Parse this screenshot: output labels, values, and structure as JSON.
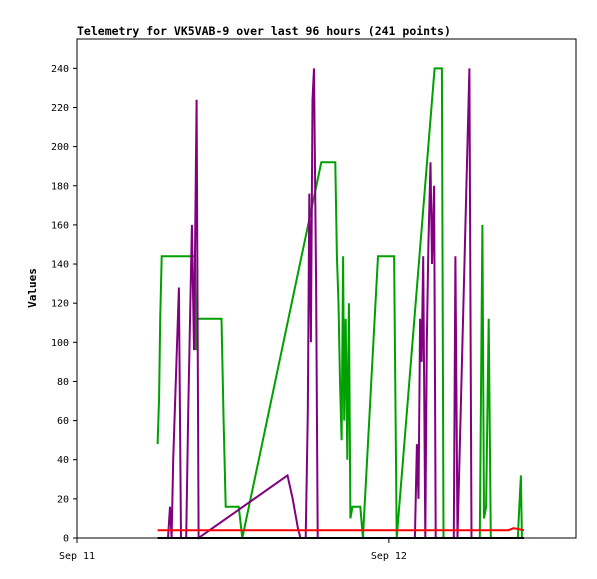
{
  "chart_data": {
    "type": "line",
    "title": "Telemetry for VK5VAB-9 over last 96 hours (241 points)",
    "xlabel": "",
    "ylabel": "Values",
    "x_range_hours": [
      0,
      96
    ],
    "ylim": [
      0,
      255
    ],
    "y_ticks": [
      0,
      20,
      40,
      60,
      80,
      100,
      120,
      140,
      160,
      180,
      200,
      220,
      240
    ],
    "x_ticks": [
      {
        "label": "Sep 11",
        "hour": 0
      },
      {
        "label": "Sep 12",
        "hour": 60
      }
    ],
    "grid": false,
    "legend": "none",
    "series": [
      {
        "color": "#00a000",
        "points": [
          [
            15.5,
            48
          ],
          [
            15.8,
            72
          ],
          [
            16,
            112
          ],
          [
            16.3,
            144
          ],
          [
            22.7,
            144
          ],
          [
            22.9,
            96
          ],
          [
            23.2,
            112
          ],
          [
            27.8,
            112
          ],
          [
            28.2,
            60
          ],
          [
            28.6,
            16
          ],
          [
            31.1,
            16
          ],
          [
            31.8,
            0
          ],
          [
            47,
            192
          ],
          [
            49.7,
            192
          ],
          [
            50,
            144
          ],
          [
            50.3,
            120
          ],
          [
            50.6,
            80
          ],
          [
            50.9,
            50
          ],
          [
            51.2,
            144
          ],
          [
            51.4,
            60
          ],
          [
            51.7,
            112
          ],
          [
            52,
            40
          ],
          [
            52.3,
            120
          ],
          [
            52.6,
            10
          ],
          [
            53,
            16
          ],
          [
            54.5,
            16
          ],
          [
            55,
            0
          ],
          [
            57.9,
            144
          ],
          [
            61,
            144
          ],
          [
            61.5,
            0
          ],
          [
            68.8,
            240
          ],
          [
            70.2,
            240
          ],
          [
            70.5,
            0
          ],
          [
            77.5,
            0
          ],
          [
            78,
            160
          ],
          [
            78.3,
            10
          ],
          [
            78.7,
            16
          ],
          [
            79.2,
            112
          ],
          [
            79.6,
            0
          ],
          [
            84.8,
            0
          ],
          [
            85.1,
            16
          ],
          [
            85.4,
            32
          ],
          [
            85.6,
            0
          ]
        ]
      },
      {
        "color": "#800080",
        "points": [
          [
            17.5,
            0
          ],
          [
            17.9,
            16
          ],
          [
            18.2,
            0
          ],
          [
            18.5,
            40
          ],
          [
            19,
            80
          ],
          [
            19.6,
            128
          ],
          [
            20,
            0
          ],
          [
            21,
            0
          ],
          [
            21.4,
            64
          ],
          [
            22.1,
            160
          ],
          [
            22.5,
            96
          ],
          [
            23,
            224
          ],
          [
            23.4,
            0
          ],
          [
            40.5,
            32
          ],
          [
            41.5,
            20
          ],
          [
            42.5,
            5
          ],
          [
            43,
            0
          ],
          [
            44,
            0
          ],
          [
            44.4,
            64
          ],
          [
            44.7,
            176
          ],
          [
            45,
            100
          ],
          [
            45.3,
            224
          ],
          [
            45.6,
            240
          ],
          [
            46,
            130
          ],
          [
            46.3,
            0
          ],
          [
            65,
            0
          ],
          [
            65.4,
            48
          ],
          [
            65.7,
            20
          ],
          [
            66,
            112
          ],
          [
            66.3,
            90
          ],
          [
            66.6,
            144
          ],
          [
            67,
            0
          ],
          [
            67.3,
            100
          ],
          [
            67.6,
            150
          ],
          [
            68,
            192
          ],
          [
            68.3,
            140
          ],
          [
            68.7,
            180
          ],
          [
            69,
            0
          ],
          [
            72.5,
            0
          ],
          [
            72.8,
            144
          ],
          [
            73.2,
            0
          ],
          [
            75.5,
            240
          ],
          [
            75.9,
            0
          ]
        ]
      },
      {
        "color": "#ff0000",
        "points": [
          [
            15.5,
            4
          ],
          [
            83,
            4
          ],
          [
            84,
            5
          ],
          [
            86,
            4
          ]
        ]
      },
      {
        "color": "#000000",
        "points": [
          [
            15.5,
            0
          ],
          [
            86,
            0
          ]
        ]
      }
    ]
  }
}
